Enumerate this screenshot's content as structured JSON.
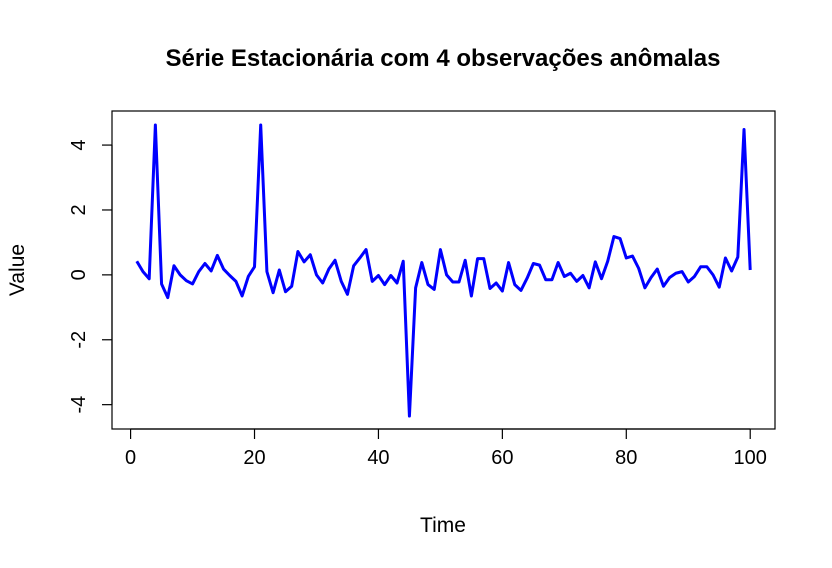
{
  "chart_data": {
    "type": "line",
    "title": "Série Estacionária com 4 observações anômalas",
    "xlabel": "Time",
    "ylabel": "Value",
    "xlim": [
      -3,
      104
    ],
    "ylim": [
      -4.75,
      5.05
    ],
    "xticks": [
      0,
      20,
      40,
      60,
      80,
      100
    ],
    "yticks": [
      -4,
      -2,
      0,
      2,
      4
    ],
    "grid": false,
    "line_color": "#0000ff",
    "series": [
      {
        "x": [
          1,
          2,
          3,
          4,
          5,
          6,
          7,
          8,
          9,
          10,
          11,
          12,
          13,
          14,
          15,
          16,
          17,
          18,
          19,
          20,
          21,
          22,
          23,
          24,
          25,
          26,
          27,
          28,
          29,
          30,
          31,
          32,
          33,
          34,
          35,
          36,
          37,
          38,
          39,
          40,
          41,
          42,
          43,
          44,
          45,
          46,
          47,
          48,
          49,
          50,
          51,
          52,
          53,
          54,
          55,
          56,
          57,
          58,
          59,
          60,
          61,
          62,
          63,
          64,
          65,
          66,
          67,
          68,
          69,
          70,
          71,
          72,
          73,
          74,
          75,
          76,
          77,
          78,
          79,
          80,
          81,
          82,
          83,
          84,
          85,
          86,
          87,
          88,
          89,
          90,
          91,
          92,
          93,
          94,
          95,
          96,
          97,
          98,
          99,
          100
        ],
        "values": [
          0.42,
          0.1,
          -0.12,
          4.62,
          -0.28,
          -0.7,
          0.28,
          0.0,
          -0.18,
          -0.28,
          0.1,
          0.35,
          0.12,
          0.6,
          0.18,
          -0.02,
          -0.2,
          -0.65,
          -0.05,
          0.25,
          4.62,
          0.1,
          -0.55,
          0.15,
          -0.52,
          -0.35,
          0.72,
          0.4,
          0.62,
          0.0,
          -0.25,
          0.18,
          0.45,
          -0.2,
          -0.6,
          0.28,
          0.52,
          0.78,
          -0.2,
          -0.02,
          -0.3,
          -0.02,
          -0.25,
          0.42,
          -4.35,
          -0.4,
          0.38,
          -0.3,
          -0.45,
          0.78,
          0.0,
          -0.22,
          -0.22,
          0.45,
          -0.65,
          0.5,
          0.5,
          -0.42,
          -0.25,
          -0.5,
          0.38,
          -0.3,
          -0.48,
          -0.1,
          0.35,
          0.3,
          -0.15,
          -0.15,
          0.38,
          -0.05,
          0.05,
          -0.2,
          -0.02,
          -0.4,
          0.4,
          -0.12,
          0.42,
          1.18,
          1.12,
          0.52,
          0.58,
          0.2,
          -0.4,
          -0.08,
          0.18,
          -0.35,
          -0.08,
          0.05,
          0.1,
          -0.22,
          -0.05,
          0.25,
          0.25,
          0.0,
          -0.38,
          0.52,
          0.12,
          0.55,
          4.48,
          0.15
        ]
      }
    ]
  }
}
